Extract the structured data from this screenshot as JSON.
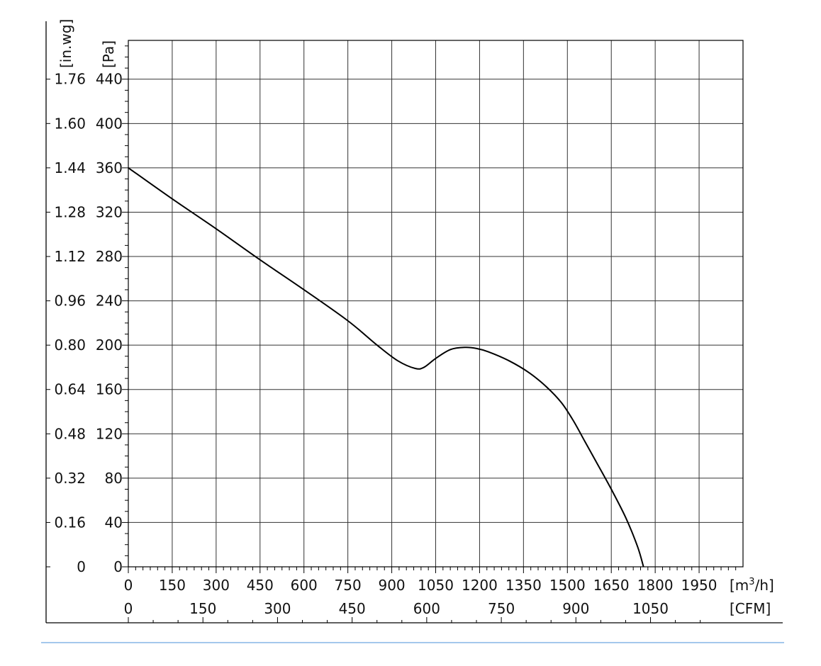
{
  "chart_data": {
    "type": "line",
    "title": "",
    "xlabel": "[m3/h]",
    "xlabel_parts": {
      "base": "[m",
      "sup": "3",
      "tail": "/h]"
    },
    "x2label": "[CFM]",
    "ylabel": "[Pa]",
    "y2label": "[in.wg]",
    "xlim": [
      0,
      2100
    ],
    "ylim": [
      0,
      475
    ],
    "grid": true,
    "x_ticks": [
      0,
      150,
      300,
      450,
      600,
      750,
      900,
      1050,
      1200,
      1350,
      1500,
      1650,
      1800,
      1950
    ],
    "x_tick_labels": [
      "0",
      "150",
      "300",
      "450",
      "600",
      "750",
      "900",
      "1050",
      "1200",
      "1350",
      "1500",
      "1650",
      "1800",
      "1950"
    ],
    "x2_ticks_m3h": [
      0,
      254.9,
      509.7,
      764.6,
      1019.4,
      1274.3,
      1529.1,
      1784.0
    ],
    "x2_tick_labels": [
      "0",
      "150",
      "300",
      "450",
      "600",
      "750",
      "900",
      "1050"
    ],
    "y_ticks": [
      0,
      40,
      80,
      120,
      160,
      200,
      240,
      280,
      320,
      360,
      400,
      440
    ],
    "y_tick_labels": [
      "0",
      "40",
      "80",
      "120",
      "160",
      "200",
      "240",
      "280",
      "320",
      "360",
      "400",
      "440"
    ],
    "y2_tick_labels": [
      "0",
      "0.16",
      "0.32",
      "0.48",
      "0.64",
      "0.80",
      "0.96",
      "1.12",
      "1.28",
      "1.44",
      "1.60",
      "1.76"
    ],
    "series": [
      {
        "name": "",
        "color": "#000000",
        "x": [
          0,
          150,
          300,
          450,
          600,
          750,
          850,
          920,
          980,
          1010,
          1050,
          1100,
          1150,
          1190,
          1230,
          1300,
          1370,
          1430,
          1480,
          1520,
          1560,
          1600,
          1650,
          1700,
          1740,
          1760
        ],
        "y": [
          360,
          332,
          305,
          277,
          250,
          222,
          200,
          186,
          179,
          180,
          188,
          196,
          198,
          197,
          194,
          186,
          175,
          162,
          148,
          132,
          113,
          94,
          70,
          44,
          18,
          0
        ]
      }
    ]
  }
}
